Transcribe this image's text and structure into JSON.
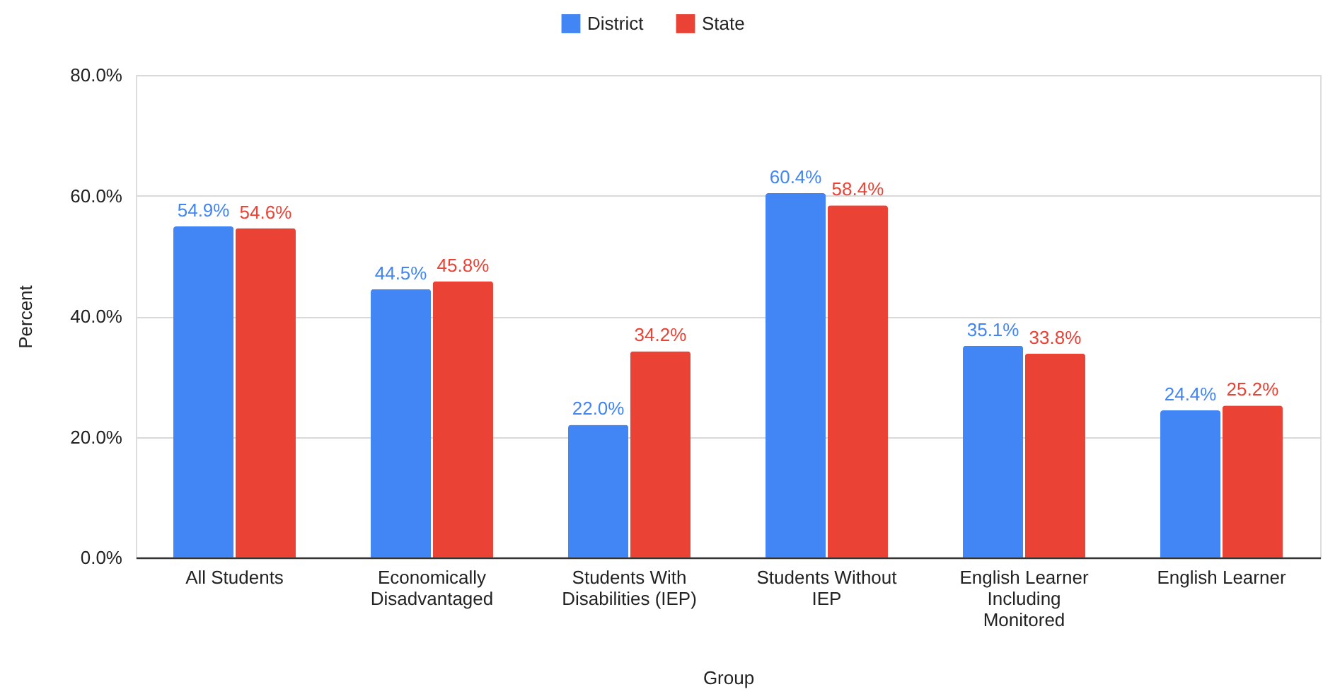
{
  "chart_data": {
    "type": "bar",
    "categories": [
      "All Students",
      "Economically Disadvantaged",
      "Students With Disabilities (IEP)",
      "Students Without IEP",
      "English Learner Including Monitored",
      "English Learner"
    ],
    "series": [
      {
        "name": "District",
        "color": "#4285f4",
        "values": [
          54.9,
          44.5,
          22.0,
          60.4,
          35.1,
          24.4
        ],
        "value_labels": [
          "54.9%",
          "44.5%",
          "22.0%",
          "60.4%",
          "35.1%",
          "24.4%"
        ]
      },
      {
        "name": "State",
        "color": "#ea4335",
        "values": [
          54.6,
          45.8,
          34.2,
          58.4,
          33.8,
          25.2
        ],
        "value_labels": [
          "54.6%",
          "45.8%",
          "34.2%",
          "58.4%",
          "33.8%",
          "25.2%"
        ]
      }
    ],
    "xlabel": "Group",
    "ylabel": "Percent",
    "ylim": [
      0,
      80
    ],
    "yticks": [
      {
        "value": 0,
        "label": "0.0%"
      },
      {
        "value": 20,
        "label": "20.0%"
      },
      {
        "value": 40,
        "label": "40.0%"
      },
      {
        "value": 60,
        "label": "60.0%"
      },
      {
        "value": 80,
        "label": "80.0%"
      }
    ],
    "grid": "y",
    "legend": "top"
  }
}
